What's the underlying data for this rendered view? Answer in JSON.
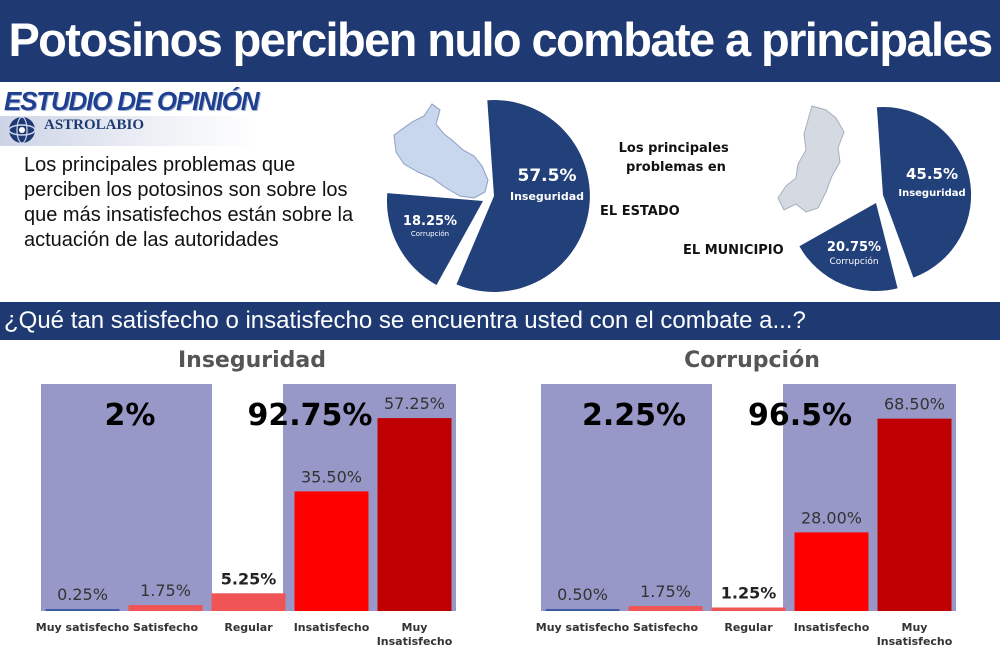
{
  "header": {
    "title": "Potosinos perciben nulo combate a principales problemas"
  },
  "logo": {
    "title": "ESTUDIO DE OPINIÓN",
    "brand": "ASTROLABIO",
    "tagline": ""
  },
  "intro_text": "Los principales problemas que perciben los potosinos son sobre los que más insatisfechos están sobre la actuación de las autoridades",
  "pies_heading": "Los principales problemas en",
  "pies": [
    {
      "location_label": "EL ESTADO",
      "slices": [
        {
          "label": "Inseguridad",
          "value_label": "57.5%",
          "value": 57.5
        },
        {
          "label": "Corrupción",
          "value_label": "18.25%",
          "value": 18.25
        }
      ]
    },
    {
      "location_label": "EL MUNICIPIO",
      "slices": [
        {
          "label": "Inseguridad",
          "value_label": "45.5%",
          "value": 45.5
        },
        {
          "label": "Corrupción",
          "value_label": "20.75%",
          "value": 20.75
        }
      ]
    }
  ],
  "question": "¿Qué tan satisfecho o insatisfecho se encuentra usted con el combate a...?",
  "colors": {
    "navy": "#1f3a73",
    "panel": "#9898c8",
    "regular": "#f05454",
    "insatisfecho": "#ff0000",
    "muy_insatisfecho": "#c00000"
  },
  "chart_data": [
    {
      "type": "bar",
      "title": "Inseguridad",
      "categories": [
        "Muy satisfecho",
        "Satisfecho",
        "Regular",
        "Insatisfecho",
        "Muy Insatisfecho"
      ],
      "values": [
        0.25,
        1.75,
        5.25,
        35.5,
        57.25
      ],
      "value_labels": [
        "0.25%",
        "1.75%",
        "5.25%",
        "35.50%",
        "57.25%"
      ],
      "satisfied_total_label": "2%",
      "dissatisfied_total_label": "92.75%",
      "ylim": [
        0,
        65
      ]
    },
    {
      "type": "bar",
      "title": "Corrupción",
      "categories": [
        "Muy satisfecho",
        "Satisfecho",
        "Regular",
        "Insatisfecho",
        "Muy Insatisfecho"
      ],
      "values": [
        0.5,
        1.75,
        1.25,
        28.0,
        68.5
      ],
      "value_labels": [
        "0.50%",
        "1.75%",
        "1.25%",
        "28.00%",
        "68.50%"
      ],
      "satisfied_total_label": "2.25%",
      "dissatisfied_total_label": "96.5%",
      "ylim": [
        0,
        78
      ]
    }
  ]
}
